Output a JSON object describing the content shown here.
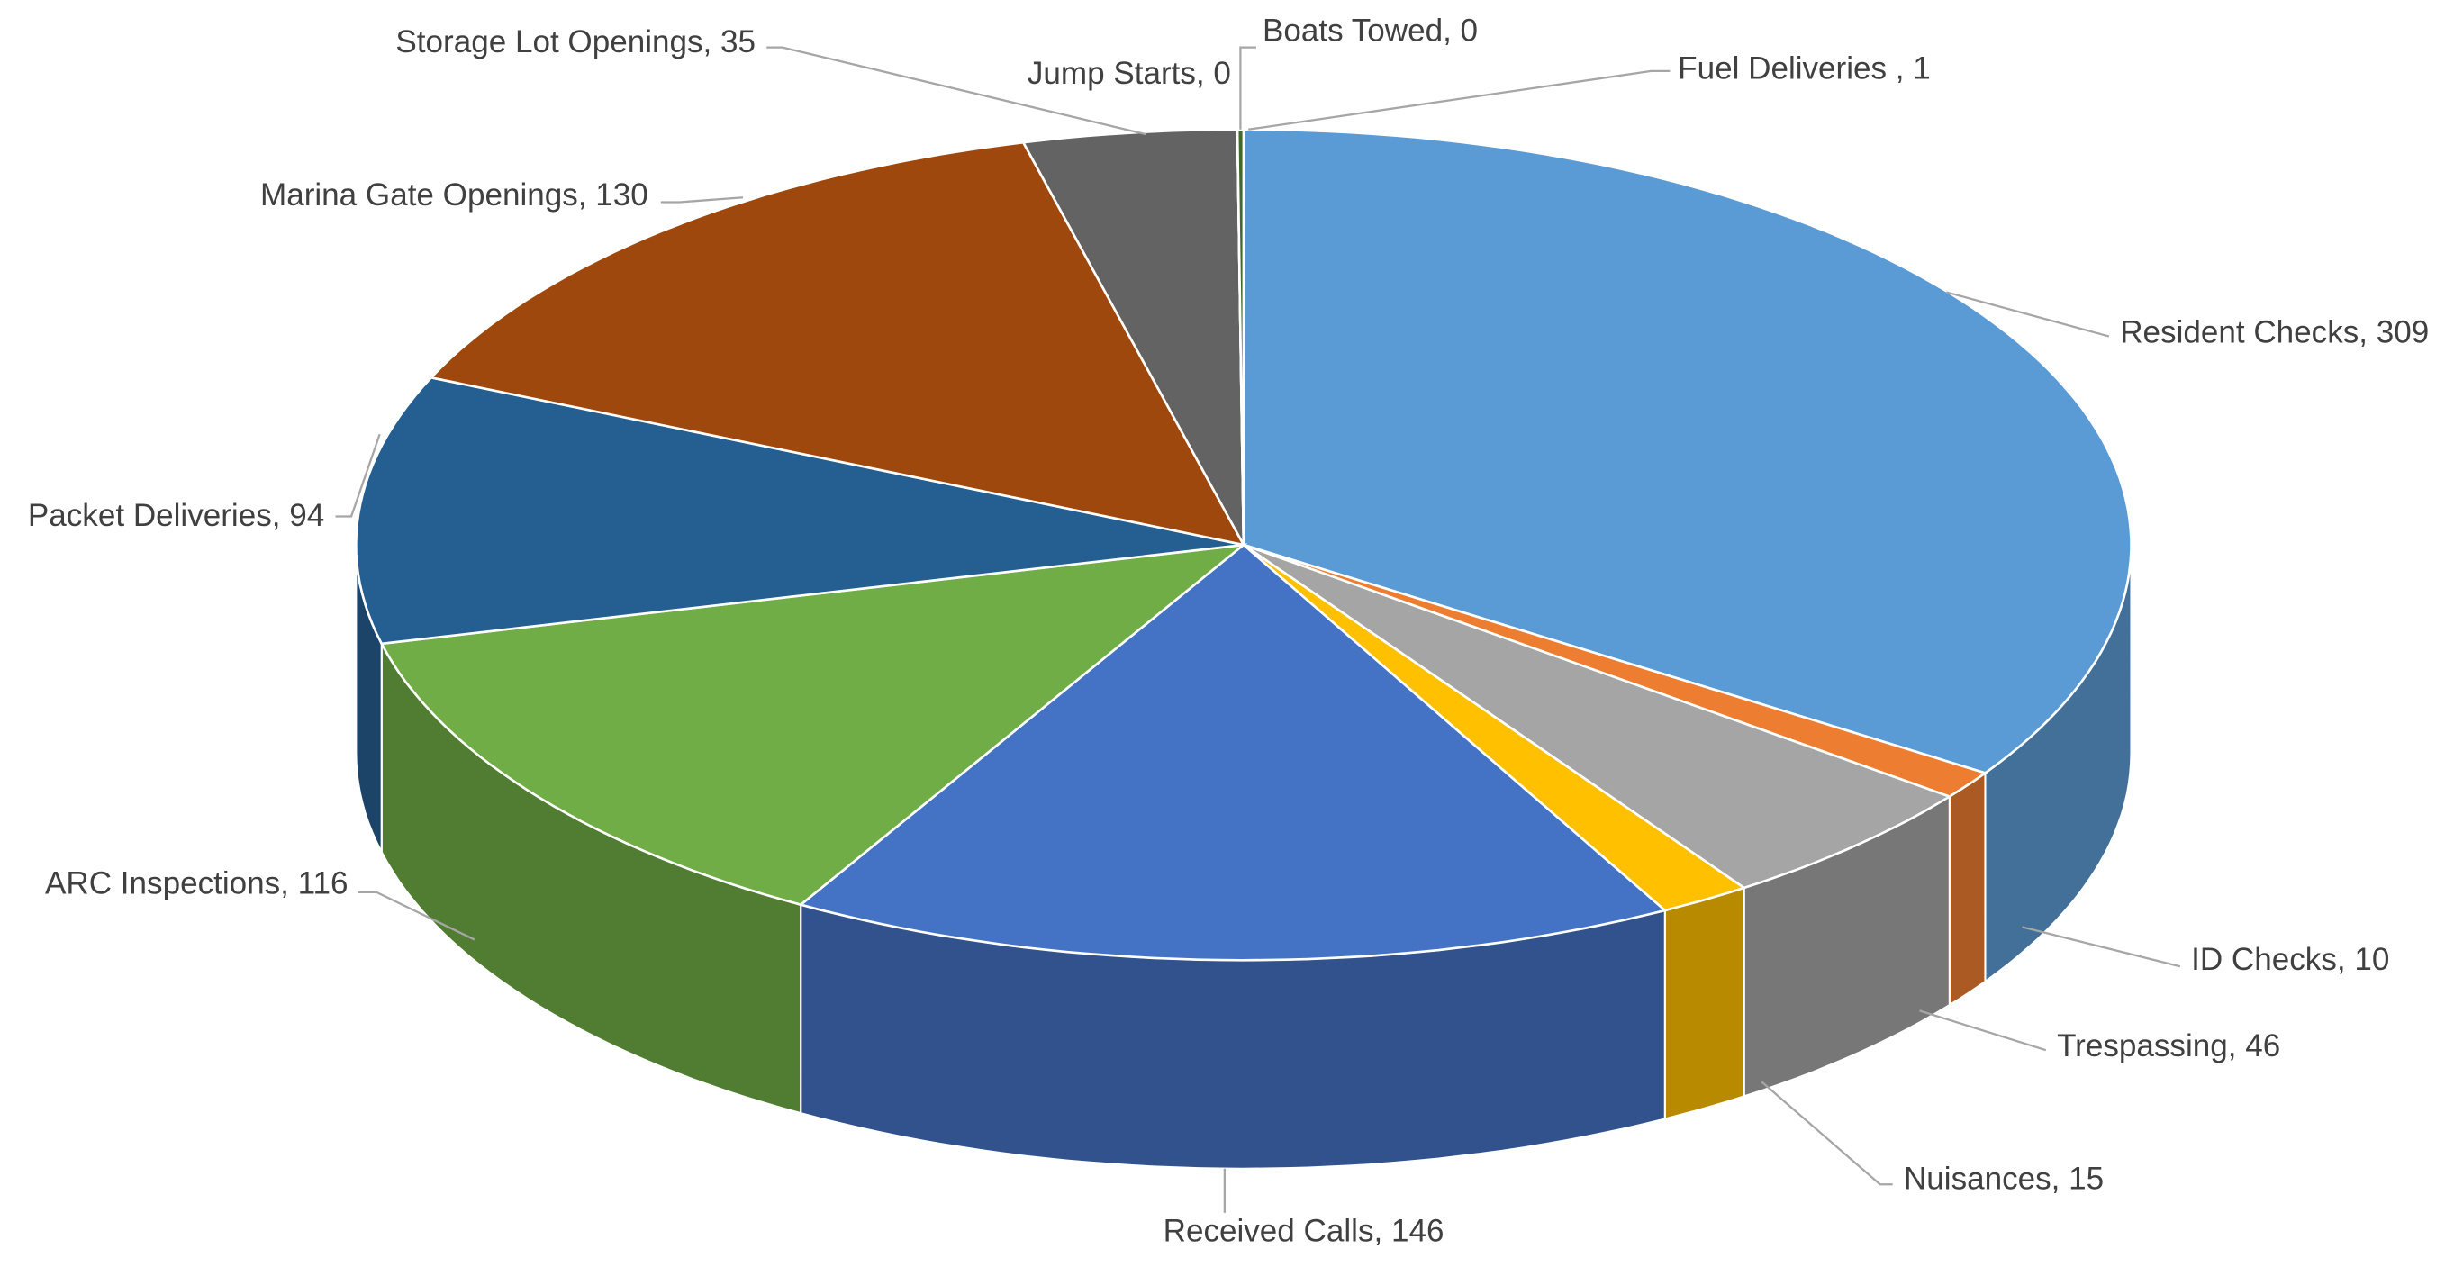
{
  "chart_data": {
    "type": "pie",
    "style": "3d",
    "title": "",
    "start": "top",
    "direction": "clockwise",
    "slices": [
      {
        "label": "Resident Checks",
        "value": 309,
        "text": "Resident Checks, 309",
        "color": "#5B9BD5"
      },
      {
        "label": "ID Checks",
        "value": 10,
        "text": "ID Checks, 10",
        "color": "#ED7D31"
      },
      {
        "label": "Trespassing",
        "value": 46,
        "text": "Trespassing, 46",
        "color": "#A5A5A5"
      },
      {
        "label": "Nuisances",
        "value": 15,
        "text": "Nuisances, 15",
        "color": "#FFC000"
      },
      {
        "label": "Received Calls",
        "value": 146,
        "text": "Received Calls, 146",
        "color": "#4472C4"
      },
      {
        "label": "ARC Inspections",
        "value": 116,
        "text": "ARC Inspections, 116",
        "color": "#70AD47"
      },
      {
        "label": "Packet Deliveries",
        "value": 94,
        "text": "Packet Deliveries, 94",
        "color": "#255E91"
      },
      {
        "label": "Marina Gate Openings",
        "value": 130,
        "text": "Marina Gate Openings, 130",
        "color": "#9E480E"
      },
      {
        "label": "Storage Lot Openings",
        "value": 35,
        "text": "Storage Lot Openings, 35",
        "color": "#636363"
      },
      {
        "label": "Jump Starts",
        "value": 0,
        "text": "Jump Starts, 0",
        "color": "#997300"
      },
      {
        "label": "Boats Towed",
        "value": 0,
        "text": "Boats Towed, 0",
        "color": "#264478"
      },
      {
        "label": "Fuel Deliveries ",
        "value": 1,
        "text": "Fuel Deliveries , 1",
        "color": "#43682B"
      }
    ],
    "legend": "none",
    "data_labels": "outside with leader lines"
  }
}
